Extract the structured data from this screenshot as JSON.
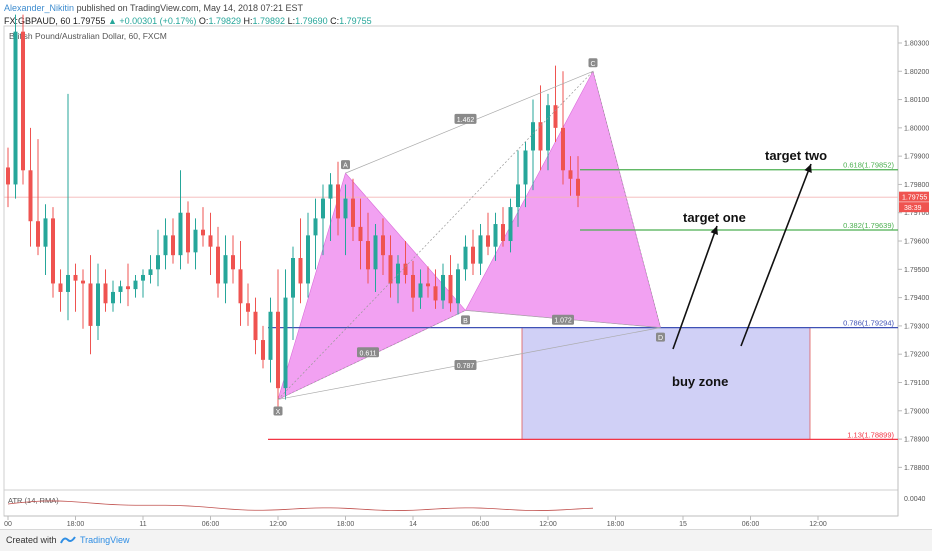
{
  "header": {
    "author": "Alexander_Nikitin",
    "published": "published on TradingView.com, May 14, 2018 07:21 EST",
    "symbol": "FX:GBPAUD, 60",
    "price": "1.79755",
    "change": "▲ +0.00301 (+0.17%)",
    "open_label": "O:",
    "open": "1.79829",
    "high_label": "H:",
    "high": "1.79892",
    "low_label": "L:",
    "low": "1.79690",
    "close_label": "C:",
    "close": "1.79755"
  },
  "footer": {
    "created": "Created with",
    "brand": "TradingView"
  },
  "chart_data": {
    "type": "candlestick",
    "title": "British Pound/Australian Dollar, 60, FXCM",
    "xlabel": "",
    "ylabel": "",
    "ylim": [
      1.7872,
      1.8036
    ],
    "y_ticks": [
      "1.80300",
      "1.80200",
      "1.80100",
      "1.80000",
      "1.79900",
      "1.79800",
      "1.79700",
      "1.79600",
      "1.79500",
      "1.79400",
      "1.79300",
      "1.79200",
      "1.79100",
      "1.79000",
      "1.78900",
      "1.78800"
    ],
    "y_tick_values": [
      1.803,
      1.802,
      1.801,
      1.8,
      1.799,
      1.798,
      1.797,
      1.796,
      1.795,
      1.794,
      1.793,
      1.792,
      1.791,
      1.79,
      1.789,
      1.788
    ],
    "x_ticks": [
      {
        "label": "00",
        "bar": 0
      },
      {
        "label": "18:00",
        "bar": 9
      },
      {
        "label": "11",
        "bar": 18
      },
      {
        "label": "06:00",
        "bar": 27
      },
      {
        "label": "12:00",
        "bar": 36
      },
      {
        "label": "18:00",
        "bar": 45
      },
      {
        "label": "14",
        "bar": 54
      },
      {
        "label": "06:00",
        "bar": 63
      },
      {
        "label": "12:00",
        "bar": 72
      },
      {
        "label": "18:00",
        "bar": 81
      },
      {
        "label": "15",
        "bar": 90
      },
      {
        "label": "06:00",
        "bar": 99
      },
      {
        "label": "12:00",
        "bar": 108
      }
    ],
    "candles": [
      [
        1.7986,
        1.7993,
        1.7972,
        1.798
      ],
      [
        1.798,
        1.804,
        1.7975,
        1.8034
      ],
      [
        1.8034,
        1.804,
        1.798,
        1.7985
      ],
      [
        1.7985,
        1.8,
        1.7958,
        1.7967
      ],
      [
        1.7967,
        1.7996,
        1.7955,
        1.7958
      ],
      [
        1.7958,
        1.7973,
        1.7948,
        1.7968
      ],
      [
        1.7968,
        1.7972,
        1.794,
        1.7945
      ],
      [
        1.7945,
        1.795,
        1.7935,
        1.7942
      ],
      [
        1.7942,
        1.8012,
        1.7932,
        1.7948
      ],
      [
        1.7948,
        1.7952,
        1.7935,
        1.7946
      ],
      [
        1.7946,
        1.795,
        1.7929,
        1.7945
      ],
      [
        1.7945,
        1.7955,
        1.792,
        1.793
      ],
      [
        1.793,
        1.7952,
        1.7925,
        1.7945
      ],
      [
        1.7945,
        1.795,
        1.7935,
        1.7938
      ],
      [
        1.7938,
        1.7946,
        1.7935,
        1.7942
      ],
      [
        1.7942,
        1.7946,
        1.7938,
        1.7944
      ],
      [
        1.7944,
        1.7952,
        1.7937,
        1.7943
      ],
      [
        1.7943,
        1.7948,
        1.794,
        1.7946
      ],
      [
        1.7946,
        1.795,
        1.794,
        1.7948
      ],
      [
        1.7948,
        1.7955,
        1.7945,
        1.795
      ],
      [
        1.795,
        1.7964,
        1.7944,
        1.7955
      ],
      [
        1.7955,
        1.7968,
        1.795,
        1.7962
      ],
      [
        1.7962,
        1.7968,
        1.7952,
        1.7955
      ],
      [
        1.7955,
        1.7985,
        1.795,
        1.797
      ],
      [
        1.797,
        1.7974,
        1.7952,
        1.7956
      ],
      [
        1.7956,
        1.7968,
        1.795,
        1.7964
      ],
      [
        1.7964,
        1.7972,
        1.7958,
        1.7962
      ],
      [
        1.7962,
        1.797,
        1.7948,
        1.7958
      ],
      [
        1.7958,
        1.7965,
        1.794,
        1.7945
      ],
      [
        1.7945,
        1.7962,
        1.7938,
        1.7955
      ],
      [
        1.7955,
        1.7962,
        1.7945,
        1.795
      ],
      [
        1.795,
        1.796,
        1.793,
        1.7938
      ],
      [
        1.7938,
        1.7945,
        1.793,
        1.7935
      ],
      [
        1.7935,
        1.794,
        1.792,
        1.7925
      ],
      [
        1.7925,
        1.793,
        1.7915,
        1.7918
      ],
      [
        1.7918,
        1.794,
        1.791,
        1.7935
      ],
      [
        1.7935,
        1.795,
        1.79,
        1.7908
      ],
      [
        1.7908,
        1.795,
        1.7904,
        1.794
      ],
      [
        1.794,
        1.7958,
        1.7925,
        1.7954
      ],
      [
        1.7954,
        1.7968,
        1.7938,
        1.7945
      ],
      [
        1.7945,
        1.797,
        1.794,
        1.7962
      ],
      [
        1.7962,
        1.7975,
        1.795,
        1.7968
      ],
      [
        1.7968,
        1.798,
        1.7955,
        1.7975
      ],
      [
        1.7975,
        1.7984,
        1.796,
        1.798
      ],
      [
        1.798,
        1.7988,
        1.7962,
        1.7968
      ],
      [
        1.7968,
        1.798,
        1.7955,
        1.7975
      ],
      [
        1.7975,
        1.7982,
        1.796,
        1.7965
      ],
      [
        1.7965,
        1.7975,
        1.795,
        1.796
      ],
      [
        1.796,
        1.797,
        1.7945,
        1.795
      ],
      [
        1.795,
        1.7966,
        1.7942,
        1.7962
      ],
      [
        1.7962,
        1.7968,
        1.7948,
        1.7955
      ],
      [
        1.7955,
        1.7962,
        1.794,
        1.7945
      ],
      [
        1.7945,
        1.7955,
        1.7938,
        1.7952
      ],
      [
        1.7952,
        1.796,
        1.7945,
        1.7948
      ],
      [
        1.7948,
        1.7953,
        1.7935,
        1.794
      ],
      [
        1.794,
        1.795,
        1.7936,
        1.7945
      ],
      [
        1.7945,
        1.7951,
        1.794,
        1.7944
      ],
      [
        1.7944,
        1.795,
        1.7936,
        1.7939
      ],
      [
        1.7939,
        1.7952,
        1.7936,
        1.7948
      ],
      [
        1.7948,
        1.7955,
        1.7935,
        1.7938
      ],
      [
        1.7938,
        1.7952,
        1.7934,
        1.795
      ],
      [
        1.795,
        1.7962,
        1.7946,
        1.7958
      ],
      [
        1.7958,
        1.7964,
        1.7948,
        1.7952
      ],
      [
        1.7952,
        1.7966,
        1.7948,
        1.7962
      ],
      [
        1.7962,
        1.797,
        1.7955,
        1.7958
      ],
      [
        1.7958,
        1.797,
        1.7953,
        1.7966
      ],
      [
        1.7966,
        1.7972,
        1.7958,
        1.796
      ],
      [
        1.796,
        1.7975,
        1.7956,
        1.7972
      ],
      [
        1.7972,
        1.7992,
        1.7965,
        1.798
      ],
      [
        1.798,
        1.7995,
        1.7972,
        1.7992
      ],
      [
        1.7992,
        1.801,
        1.7978,
        1.8002
      ],
      [
        1.8002,
        1.8015,
        1.7985,
        1.7992
      ],
      [
        1.7992,
        1.8012,
        1.7985,
        1.8008
      ],
      [
        1.8008,
        1.8022,
        1.7995,
        1.8
      ],
      [
        1.8,
        1.802,
        1.798,
        1.7985
      ],
      [
        1.7985,
        1.799,
        1.7976,
        1.7982
      ],
      [
        1.7982,
        1.799,
        1.7972,
        1.7976
      ]
    ],
    "pattern": {
      "name": "bearish-to-bullish harmonic XABCD",
      "points": [
        {
          "label": "X",
          "bar": 36,
          "price": 1.7904
        },
        {
          "label": "A",
          "bar": 45,
          "price": 1.7984
        },
        {
          "label": "B",
          "bar": 61,
          "price": 1.79355
        },
        {
          "label": "C",
          "bar": 78,
          "price": 1.802
        },
        {
          "label": "D",
          "bar": 87,
          "price": 1.79294
        }
      ],
      "ratios": [
        {
          "text": "1.462",
          "bar": 61,
          "price": 1.8003
        },
        {
          "text": "0.611",
          "bar": 48,
          "price": 1.79205
        },
        {
          "text": "0.787",
          "bar": 61,
          "price": 1.7916
        },
        {
          "text": "1.072",
          "bar": 74,
          "price": 1.7932
        }
      ]
    },
    "levels": [
      {
        "label": "0.618(1.79852)",
        "price": 1.79852,
        "color": "#4caf50"
      },
      {
        "label": "0.382(1.79639)",
        "price": 1.79639,
        "color": "#4caf50"
      },
      {
        "label": "0.786(1.79294)",
        "price": 1.79294,
        "color": "#3f51b5"
      },
      {
        "label": "1.13(1.78899)",
        "price": 1.78899,
        "color": "#f23645"
      }
    ],
    "annotations": {
      "target_two": "target two",
      "target_one": "target one",
      "buy_zone": "buy zone"
    },
    "price_tag": "1.79755",
    "countdown_tag": "38:39",
    "indicator": {
      "label": "ATR (14, RMA)",
      "tick": "0.0040"
    },
    "colors": {
      "up": "#26a69a",
      "down": "#ef5350",
      "pattern_fill": "#ee82ee",
      "buy_zone": "#c8c8f5"
    }
  }
}
